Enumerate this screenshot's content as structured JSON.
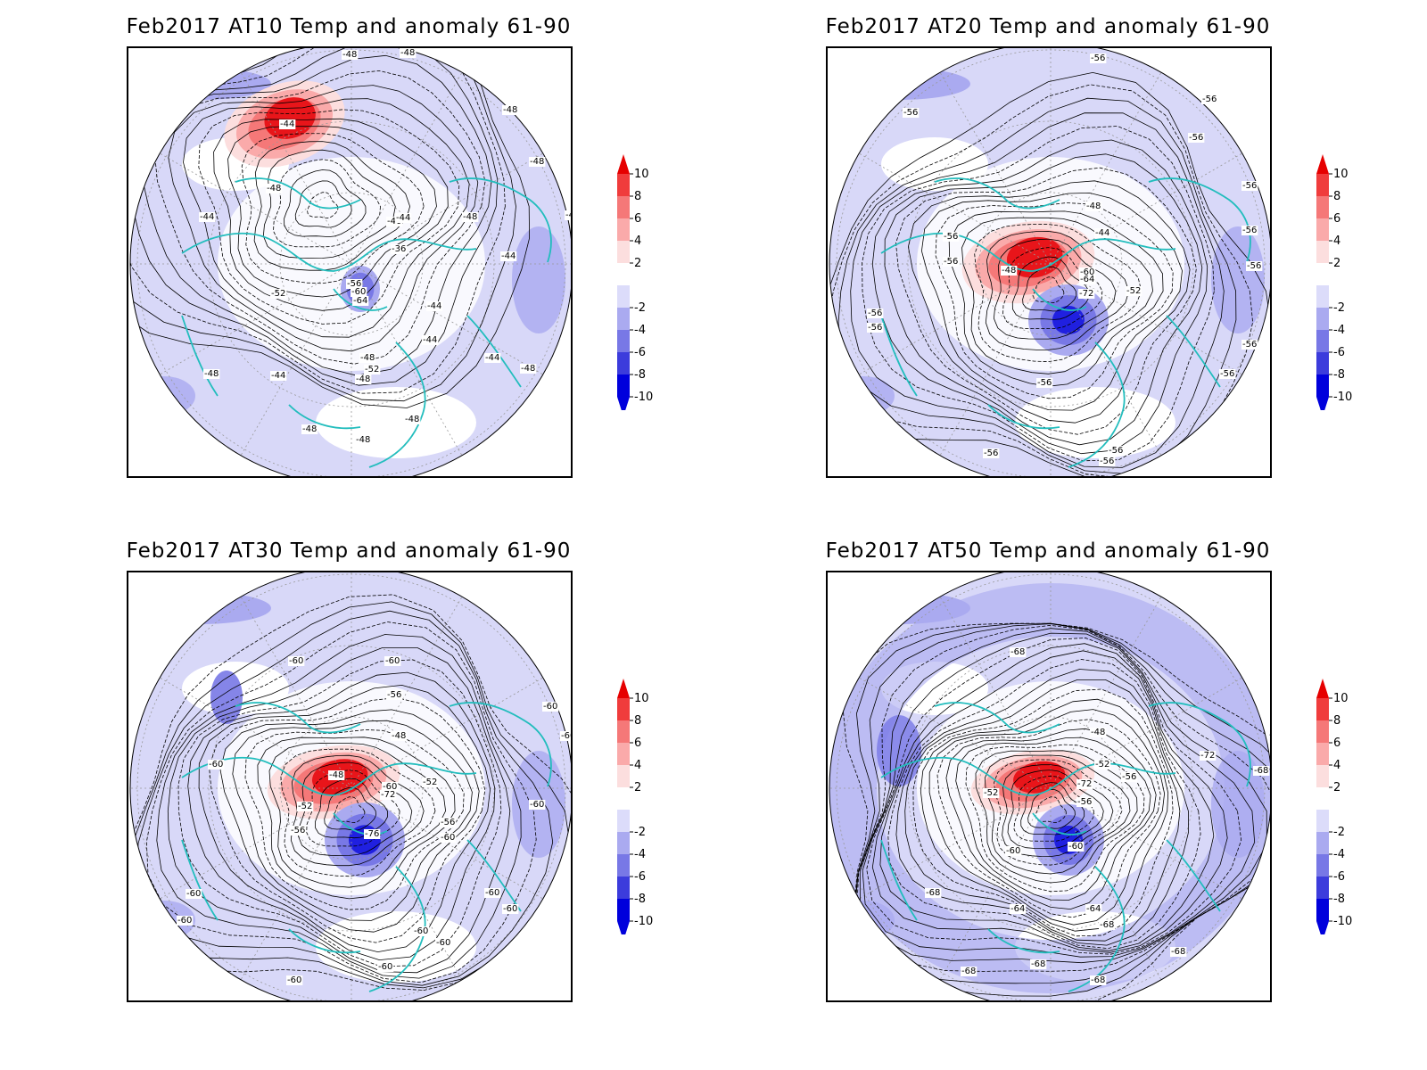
{
  "panels": [
    {
      "id": "at10",
      "title": "Feb2017 AT10 Temp and anomaly 61-90",
      "contour_labels": [
        "-48",
        "-48",
        "-48",
        "-44",
        "-48",
        "-48",
        "-48",
        "-44",
        "-40",
        "-44",
        "-48",
        "-36",
        "-44",
        "-48",
        "-52",
        "-56",
        "-60",
        "-64",
        "-44",
        "-44",
        "-48",
        "-52",
        "-48",
        "-44",
        "-48",
        "-44",
        "-48",
        "-48",
        "-48",
        "-48",
        "-48"
      ]
    },
    {
      "id": "at20",
      "title": "Feb2017 AT20 Temp and anomaly 61-90",
      "contour_labels": [
        "-56",
        "-56",
        "-56",
        "-56",
        "-56",
        "-48",
        "-44",
        "-56",
        "-48",
        "-56",
        "-60",
        "-64",
        "-52",
        "-72",
        "-56",
        "-56",
        "-56",
        "-56",
        "-56",
        "-56",
        "-56",
        "-56",
        "-56",
        "-56"
      ]
    },
    {
      "id": "at30",
      "title": "Feb2017 AT30 Temp and anomaly 61-90",
      "contour_labels": [
        "-60",
        "-60",
        "-56",
        "-60",
        "-60",
        "-48",
        "-60",
        "-48",
        "-60",
        "-52",
        "-52",
        "-72",
        "-56",
        "-56",
        "-76",
        "-60",
        "-60",
        "-60",
        "-60",
        "-60",
        "-60",
        "-60",
        "-60",
        "-60",
        "-60"
      ]
    },
    {
      "id": "at50",
      "title": "Feb2017 AT50 Temp and anomaly 61-90",
      "contour_labels": [
        "-68",
        "-48",
        "-52",
        "-64",
        "-68",
        "-56",
        "-52",
        "-72",
        "-72",
        "-56",
        "-60",
        "-60",
        "-68",
        "-68",
        "-64",
        "-68",
        "-68",
        "-68",
        "-68",
        "-68"
      ]
    }
  ],
  "colorbar": {
    "ticks": [
      "10",
      "8",
      "6",
      "4",
      "2",
      "-2",
      "-4",
      "-6",
      "-8",
      "-10"
    ],
    "colors": [
      "#e60000",
      "#f03c3c",
      "#f57878",
      "#faaaaa",
      "#fcdede",
      "#ffffff",
      "#dcdcfa",
      "#aaaaf0",
      "#7878e6",
      "#3c3cdc",
      "#0000dc"
    ]
  },
  "colors": {
    "coastline": "#22bdbd",
    "warm_core": "#e8151a",
    "cold_core": "#2020e0",
    "light_blue": "#d8d8f8",
    "mid_blue": "#aaaaf0"
  }
}
